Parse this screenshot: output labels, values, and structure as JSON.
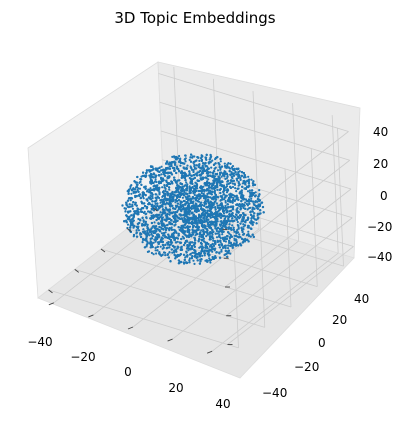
{
  "chart_data": {
    "type": "scatter",
    "projection": "3d",
    "title": "3D Topic Embeddings",
    "xlabel": "",
    "ylabel": "",
    "zlabel": "",
    "grid": true,
    "legend": "none",
    "colors": {
      "points": "#1f77b4",
      "pane": "#f2f2f2",
      "grid": "#cccccc"
    },
    "x_ticks": [
      "−40",
      "−20",
      "0",
      "20",
      "40"
    ],
    "y_ticks": [
      "−40",
      "−20",
      "0",
      "20",
      "40"
    ],
    "z_ticks": [
      "−40",
      "−20",
      "0",
      "20",
      "40"
    ],
    "xlim": [
      -48,
      48
    ],
    "ylim": [
      -48,
      48
    ],
    "zlim": [
      -48,
      48
    ],
    "point_cloud": {
      "approx_point_count": 6000,
      "center": [
        0,
        0,
        0
      ],
      "spread_radius": 30
    }
  }
}
